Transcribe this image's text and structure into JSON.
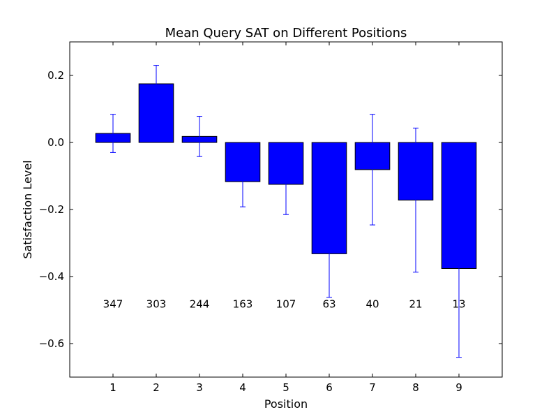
{
  "chart_data": {
    "type": "bar",
    "title": "Mean Query SAT on Different Positions",
    "xlabel": "Position",
    "ylabel": "Satisfaction Level",
    "categories": [
      "1",
      "2",
      "3",
      "4",
      "5",
      "6",
      "7",
      "8",
      "9"
    ],
    "values": [
      0.027,
      0.175,
      0.018,
      -0.117,
      -0.125,
      -0.332,
      -0.081,
      -0.172,
      -0.376
    ],
    "errors": [
      0.057,
      0.055,
      0.06,
      0.075,
      0.09,
      0.13,
      0.165,
      0.215,
      0.265
    ],
    "counts": [
      "347",
      "303",
      "244",
      "163",
      "107",
      "63",
      "40",
      "21",
      "13"
    ],
    "count_label_y": -0.48,
    "xlim": [
      0,
      10
    ],
    "ylim": [
      -0.7,
      0.3
    ],
    "yticks": [
      0.2,
      0.0,
      -0.2,
      -0.4,
      -0.6
    ],
    "ytick_labels": [
      "0.2",
      "0.0",
      "−0.2",
      "−0.4",
      "−0.6"
    ],
    "bar_color": "#0000ff",
    "error_color": "#0000ff",
    "grid": false,
    "legend": "none"
  }
}
